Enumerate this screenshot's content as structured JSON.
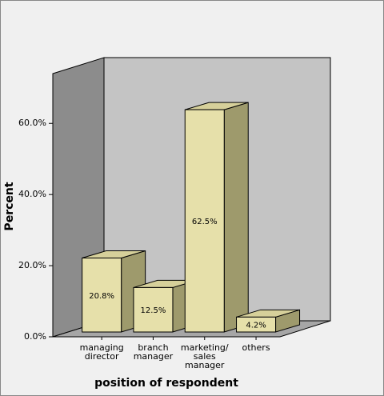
{
  "chart_data": {
    "type": "bar3d",
    "y_label": "Percent",
    "x_label": "position of respondent",
    "categories": [
      "managing director",
      "branch manager",
      "marketing/sales manager",
      "others"
    ],
    "values": [
      20.8,
      12.5,
      62.5,
      4.2
    ],
    "value_labels": [
      "20.8%",
      "12.5%",
      "62.5%",
      "4.2%"
    ],
    "color": "#e6e0aa",
    "ylim": [
      0,
      74
    ],
    "yticks": [
      {
        "value": 0,
        "label": "0.0%"
      },
      {
        "value": 20,
        "label": "20.0%"
      },
      {
        "value": 40,
        "label": "40.0%"
      },
      {
        "value": 60,
        "label": "60.0%"
      }
    ]
  }
}
